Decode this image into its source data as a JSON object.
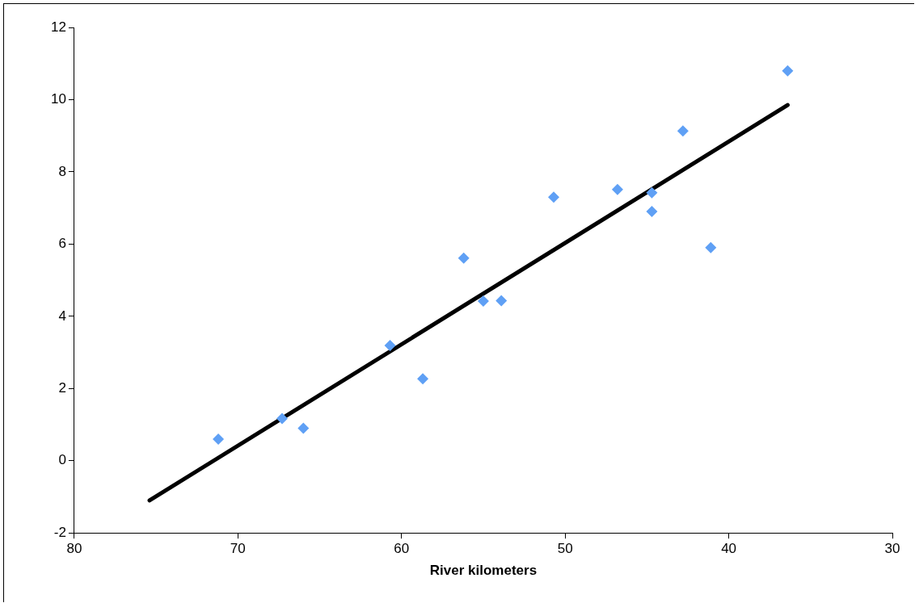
{
  "chart_data": {
    "type": "scatter",
    "xlabel": "River kilometers",
    "xlim": [
      80,
      30
    ],
    "xticks": [
      80,
      70,
      60,
      50,
      40,
      30
    ],
    "ylim": [
      -2,
      12
    ],
    "yticks": [
      -2,
      0,
      2,
      4,
      6,
      8,
      10,
      12
    ],
    "grid": false,
    "legend": false,
    "marker": "diamond",
    "series": [
      {
        "type": "scatter",
        "color": "#5fa0f5",
        "x": [
          71.2,
          67.3,
          66.0,
          60.7,
          58.7,
          56.2,
          55.0,
          53.9,
          50.7,
          46.8,
          44.7,
          44.7,
          42.8,
          41.1,
          36.4
        ],
        "values": [
          0.6,
          1.17,
          0.9,
          3.19,
          2.27,
          5.61,
          4.42,
          4.43,
          7.3,
          7.51,
          7.42,
          6.9,
          9.13,
          5.9,
          10.8
        ]
      },
      {
        "type": "line",
        "color": "#000000",
        "marker": "none",
        "line_style": "solid",
        "x": [
          75.4,
          36.4
        ],
        "values": [
          -1.1,
          9.85
        ]
      }
    ]
  }
}
